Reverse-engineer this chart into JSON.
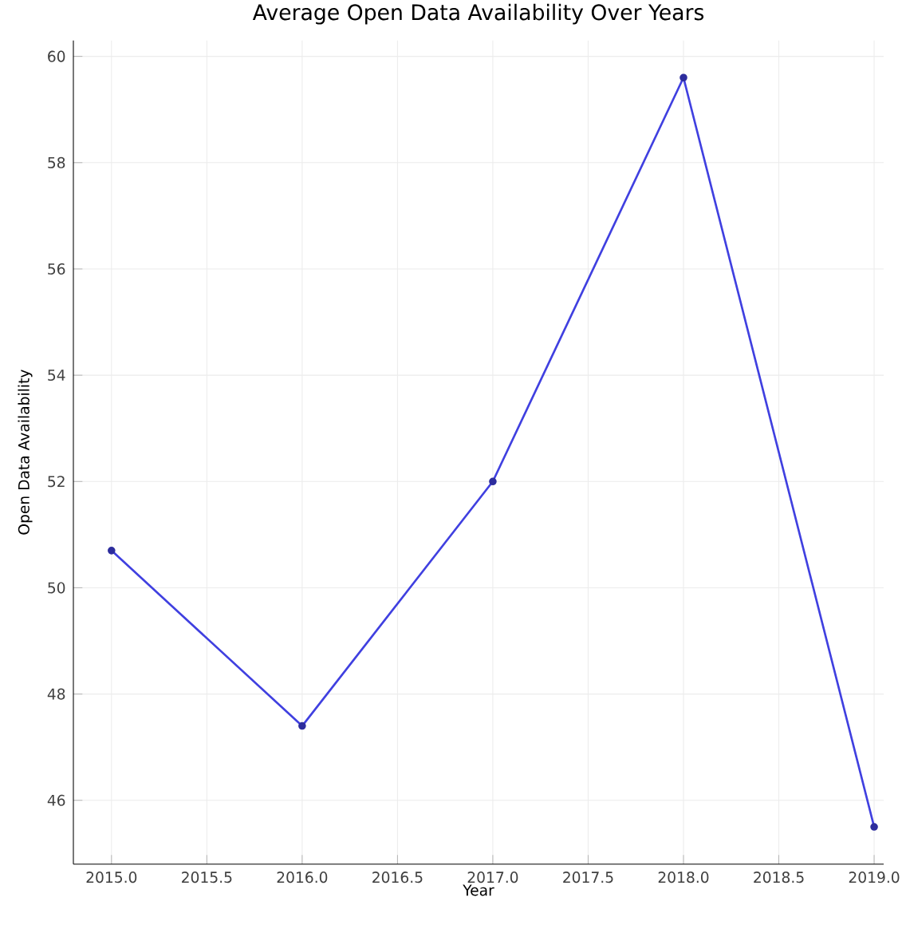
{
  "chart_data": {
    "type": "line",
    "title": "Average Open Data Availability Over Years",
    "xlabel": "Year",
    "ylabel": "Open Data Availability",
    "x": [
      2015,
      2016,
      2017,
      2018,
      2019
    ],
    "series": [
      {
        "color": "#4040e0",
        "values": [
          50.7,
          47.4,
          52.0,
          59.6,
          45.5
        ]
      }
    ],
    "xlim": [
      2014.8,
      2019.05
    ],
    "ylim": [
      44.8,
      60.3
    ],
    "xticks": [
      {
        "value": 2015,
        "label": "2015.0"
      },
      {
        "value": 2015.5,
        "label": "2015.5"
      },
      {
        "value": 2016,
        "label": "2016.0"
      },
      {
        "value": 2016.5,
        "label": "2016.5"
      },
      {
        "value": 2017,
        "label": "2017.0"
      },
      {
        "value": 2017.5,
        "label": "2017.5"
      },
      {
        "value": 2018,
        "label": "2018.0"
      },
      {
        "value": 2018.5,
        "label": "2018.5"
      },
      {
        "value": 2019,
        "label": "2019.0"
      }
    ],
    "yticks": [
      46,
      48,
      50,
      52,
      54,
      56,
      58,
      60
    ],
    "grid": true,
    "marker": "circle",
    "line_style": "solid"
  }
}
